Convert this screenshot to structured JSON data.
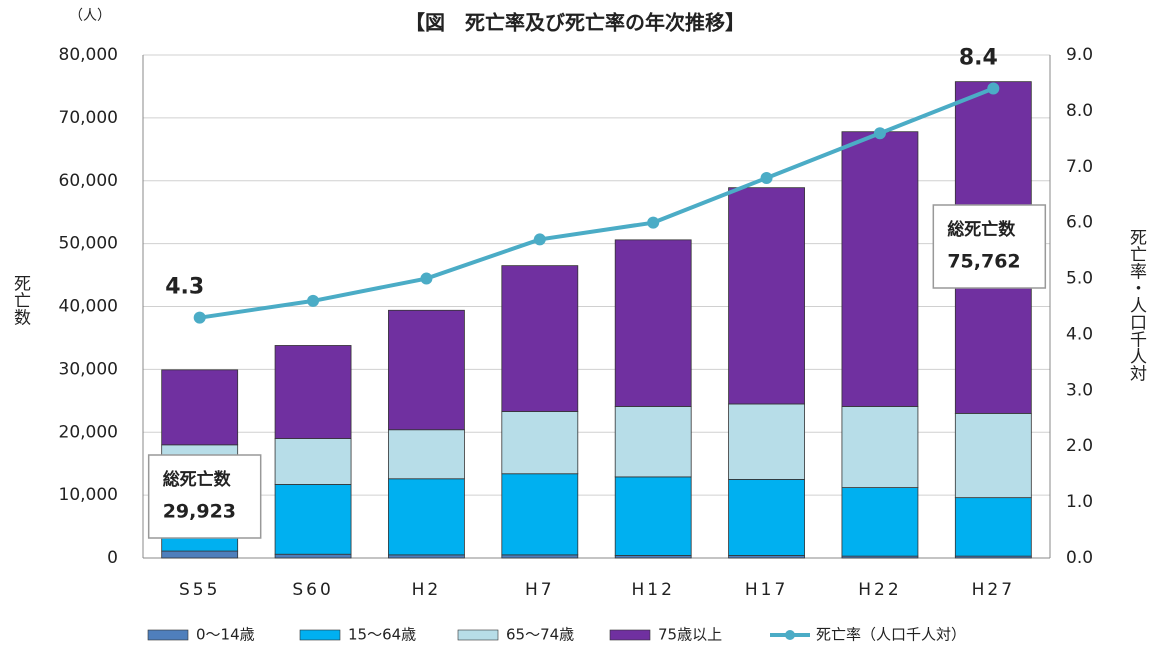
{
  "chart_data": {
    "type": "bar",
    "stacked": true,
    "title": "【図　死亡率及び死亡率の年次推移】",
    "y_unit": "（人）",
    "y_label": "死亡数",
    "y2_label": "死亡率・人口千人対",
    "categories": [
      "S55",
      "S60",
      "H2",
      "H7",
      "H12",
      "H17",
      "H22",
      "H27"
    ],
    "series": [
      {
        "name": "0～14歳",
        "color": "#4f7fbc",
        "type": "bar",
        "values": [
          1100,
          600,
          500,
          500,
          400,
          400,
          300,
          300
        ]
      },
      {
        "name": "15～64歳",
        "color": "#00b0f0",
        "type": "bar",
        "values": [
          9900,
          11100,
          12100,
          12900,
          12500,
          12100,
          10900,
          9300
        ]
      },
      {
        "name": "65～74歳",
        "color": "#b7dde8",
        "type": "bar",
        "values": [
          7000,
          7300,
          7800,
          9900,
          11200,
          12000,
          12900,
          13400
        ]
      },
      {
        "name": "75歳以上",
        "color": "#7030a0",
        "type": "bar",
        "values": [
          11923,
          14800,
          19000,
          23200,
          26500,
          34400,
          43700,
          52762
        ]
      },
      {
        "name": "死亡率（人口千人対）",
        "color": "#4bacc6",
        "type": "line",
        "axis": "y2",
        "values": [
          4.3,
          4.6,
          5.0,
          5.7,
          6.0,
          6.8,
          7.6,
          8.4
        ],
        "value_labels": [
          "4.3",
          null,
          null,
          null,
          null,
          null,
          null,
          "8.4"
        ]
      }
    ],
    "annotations": [
      {
        "category": 0,
        "title": "総死亡数",
        "text": "29,923"
      },
      {
        "category": 7,
        "title": "総死亡数",
        "text": "75,762"
      }
    ],
    "ylim": [
      0,
      80000
    ],
    "yticks": [
      0,
      {
        "value": 10000,
        "label": "10,000"
      },
      {
        "value": 20000,
        "label": "20,000"
      },
      {
        "value": 30000,
        "label": "30,000"
      },
      {
        "value": 40000,
        "label": "40,000"
      },
      {
        "value": 50000,
        "label": "50,000"
      },
      {
        "value": 60000,
        "label": "60,000"
      },
      {
        "value": 70000,
        "label": "70,000"
      },
      {
        "value": 80000,
        "label": "80,000"
      }
    ],
    "y2lim": [
      0,
      9
    ],
    "y2ticks": [
      {
        "value": 0,
        "label": "0.0"
      },
      {
        "value": 1,
        "label": "1.0"
      },
      {
        "value": 2,
        "label": "2.0"
      },
      {
        "value": 3,
        "label": "3.0"
      },
      {
        "value": 4,
        "label": "4.0"
      },
      {
        "value": 5,
        "label": "5.0"
      },
      {
        "value": 6,
        "label": "6.0"
      },
      {
        "value": 7,
        "label": "7.0"
      },
      {
        "value": 8,
        "label": "8.0"
      },
      {
        "value": 9,
        "label": "9.0"
      }
    ],
    "grid": true,
    "legend": "bottom"
  }
}
